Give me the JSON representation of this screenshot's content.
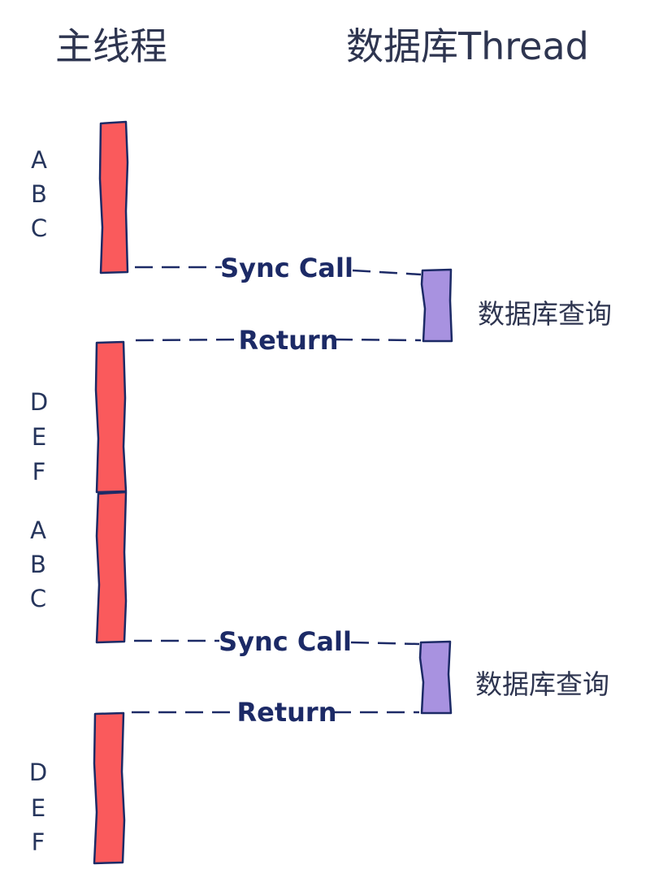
{
  "lanes": {
    "main_thread": "主线程",
    "db_thread": "数据库Thread"
  },
  "segments": [
    {
      "letters": [
        "A",
        "B",
        "C"
      ]
    },
    {
      "letters": [
        "D",
        "E",
        "F"
      ]
    },
    {
      "letters": [
        "A",
        "B",
        "C"
      ]
    },
    {
      "letters": [
        "D",
        "E",
        "F"
      ]
    }
  ],
  "messages": [
    {
      "call_label": "Sync Call",
      "return_label": "Return",
      "db_label": "数据库查询"
    },
    {
      "call_label": "Sync Call",
      "return_label": "Return",
      "db_label": "数据库查询"
    }
  ],
  "colors": {
    "main_bar": "#fa5a5c",
    "db_bar": "#a892e0",
    "ink": "#1c2a66"
  }
}
